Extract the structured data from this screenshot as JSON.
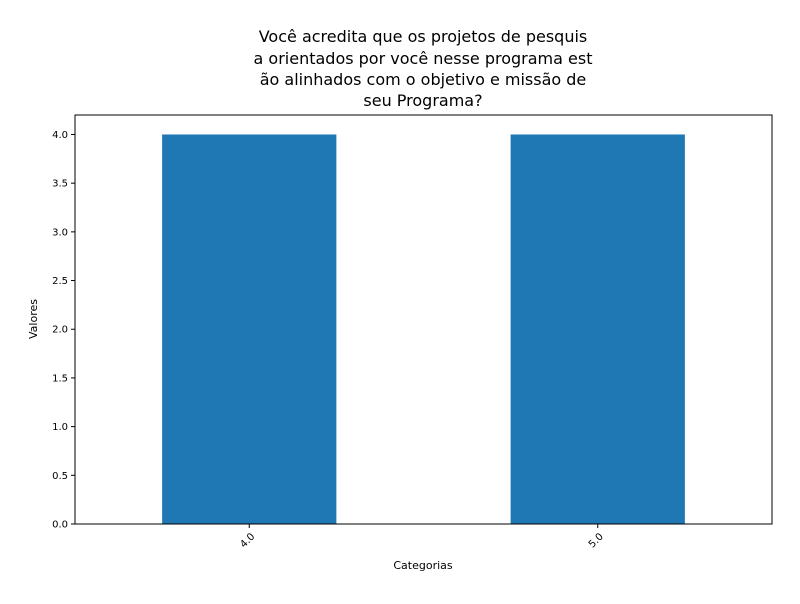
{
  "chart_data": {
    "type": "bar",
    "title_lines": [
      "Você acredita que os projetos de pesquis",
      "a orientados por você nesse programa est",
      "ão alinhados com o objetivo e missão de",
      "seu Programa?"
    ],
    "xlabel": "Categorias",
    "ylabel": "Valores",
    "categories": [
      "4.0",
      "5.0"
    ],
    "values": [
      4,
      4
    ],
    "ylim": [
      0,
      4.2
    ],
    "yticks": [
      "0.0",
      "0.5",
      "1.0",
      "1.5",
      "2.0",
      "2.5",
      "3.0",
      "3.5",
      "4.0"
    ],
    "bar_color": "#1f77b4",
    "grid": false,
    "legend": false
  }
}
